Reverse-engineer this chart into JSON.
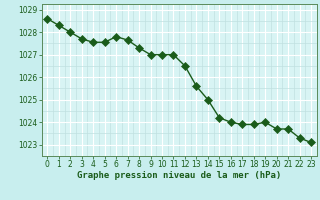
{
  "x": [
    0,
    1,
    2,
    3,
    4,
    5,
    6,
    7,
    8,
    9,
    10,
    11,
    12,
    13,
    14,
    15,
    16,
    17,
    18,
    19,
    20,
    21,
    22,
    23
  ],
  "y": [
    1028.6,
    1028.3,
    1028.0,
    1027.7,
    1027.55,
    1027.55,
    1027.8,
    1027.65,
    1027.3,
    1027.0,
    1027.0,
    1027.0,
    1026.5,
    1025.6,
    1025.0,
    1024.2,
    1024.0,
    1023.9,
    1023.9,
    1024.0,
    1023.7,
    1023.7,
    1023.3,
    1023.1
  ],
  "line_color": "#1a5c1a",
  "marker_color": "#1a5c1a",
  "bg_color": "#c8eeee",
  "plot_bg_color": "#d8f4f4",
  "grid_major_color": "#ffffff",
  "grid_minor_color": "#c0e0e0",
  "xlabel": "Graphe pression niveau de la mer (hPa)",
  "xlabel_color": "#1a5c1a",
  "tick_color": "#1a5c1a",
  "spine_color": "#5a8a5a",
  "ylim_min": 1022.5,
  "ylim_max": 1029.25,
  "yticks": [
    1023,
    1024,
    1025,
    1026,
    1027,
    1028,
    1029
  ],
  "xticks": [
    0,
    1,
    2,
    3,
    4,
    5,
    6,
    7,
    8,
    9,
    10,
    11,
    12,
    13,
    14,
    15,
    16,
    17,
    18,
    19,
    20,
    21,
    22,
    23
  ],
  "marker_size": 4,
  "line_width": 1.0,
  "xlabel_fontsize": 6.5,
  "tick_fontsize": 5.5
}
